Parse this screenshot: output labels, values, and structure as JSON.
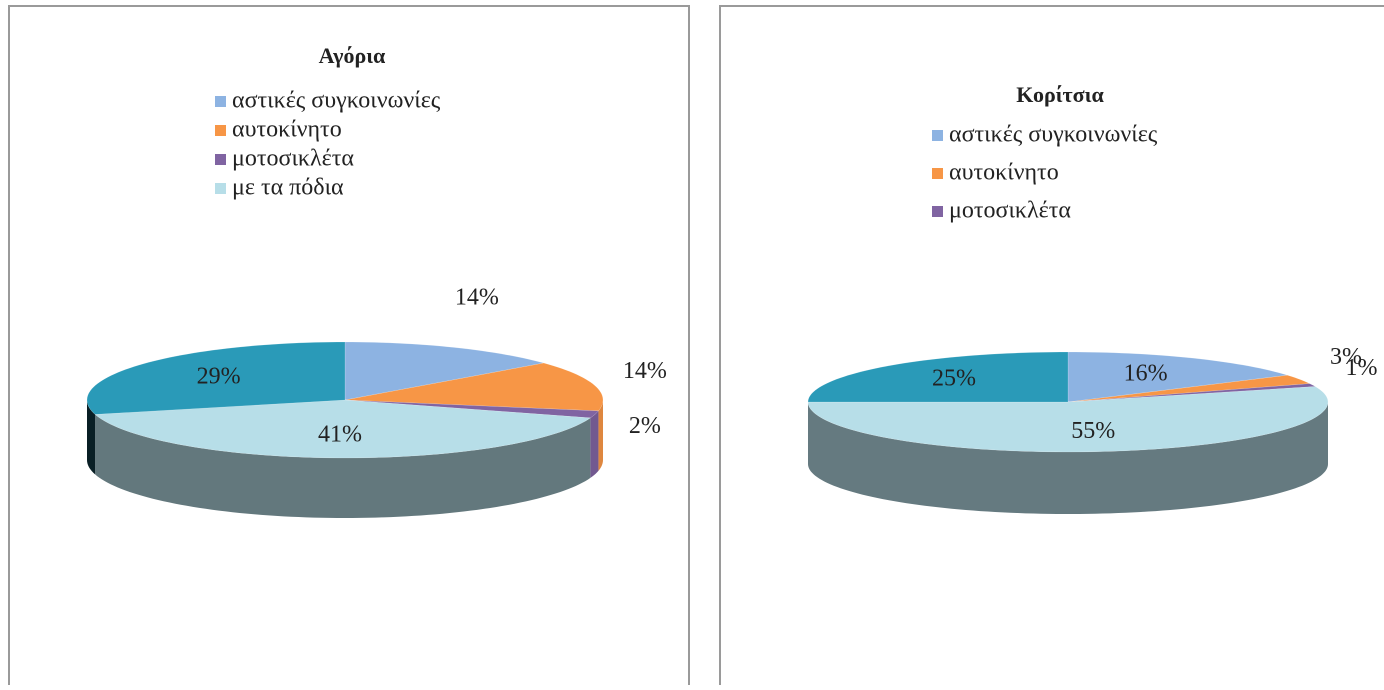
{
  "chart_data": [
    {
      "type": "pie",
      "title": "Αγόρια",
      "categories": [
        "αστικές συγκοινωνίες",
        "αυτοκίνητο",
        "μοτοσικλέτα",
        "με τα πόδια",
        null
      ],
      "values": [
        14,
        14,
        2,
        41,
        29
      ],
      "value_labels": [
        "14%",
        "14%",
        "2%",
        "41%",
        "29%"
      ],
      "colors": [
        "#8db3e2",
        "#f79646",
        "#8064a2",
        "#b7dee8",
        "#2a9ab8"
      ]
    },
    {
      "type": "pie",
      "title": "Κορίτσια",
      "categories": [
        "αστικές συγκοινωνίες",
        "αυτοκίνητο",
        "μοτοσικλέτα",
        null,
        null
      ],
      "values": [
        16,
        3,
        1,
        55,
        25
      ],
      "value_labels": [
        "16%",
        "3%",
        "1%",
        "55%",
        "25%"
      ],
      "colors": [
        "#8db3e2",
        "#f79646",
        "#8064a2",
        "#b7dee8",
        "#2a9ab8"
      ]
    }
  ]
}
